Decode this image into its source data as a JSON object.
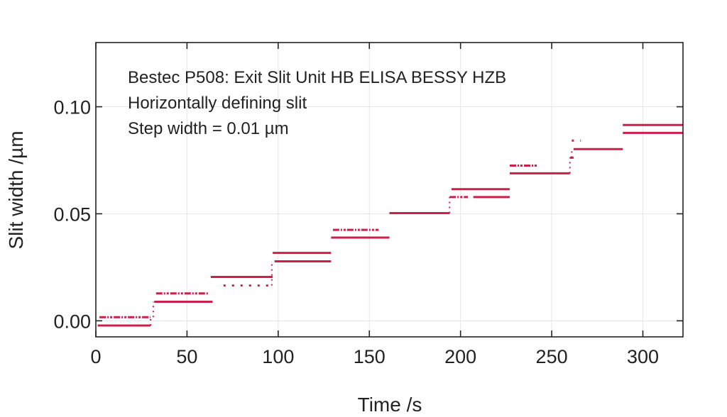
{
  "chart_data": {
    "type": "line",
    "xlabel": "Time /s",
    "ylabel": "Slit width /µm",
    "xlim": [
      0,
      322
    ],
    "ylim": [
      -0.0075,
      0.13
    ],
    "x_ticks": [
      0,
      50,
      100,
      150,
      200,
      250,
      300
    ],
    "x_tick_labels": [
      "0",
      "50",
      "100",
      "150",
      "200",
      "250",
      "300"
    ],
    "y_ticks": [
      0.0,
      0.05,
      0.1
    ],
    "y_tick_labels": [
      "0.00",
      "0.05",
      "0.10"
    ],
    "grid": true,
    "line_color": "#cc1f4a",
    "annotations": [
      "Bestec P508: Exit Slit Unit HB ELISA BESSY HZB",
      "Horizontally defining slit",
      "Step width = 0.01 µm"
    ],
    "series": [
      {
        "segments": [
          {
            "x": [
              2,
              30
            ],
            "y": 0.0017,
            "style": "dash-dot"
          },
          {
            "x": [
              1,
              30
            ],
            "y": -0.0022,
            "style": "solid"
          },
          {
            "x": [
              33,
              62
            ],
            "y": 0.0128,
            "style": "dash-dot"
          },
          {
            "x": [
              32,
              64
            ],
            "y": 0.0089,
            "style": "solid"
          },
          {
            "x": [
              63,
              97
            ],
            "y": 0.0205,
            "style": "solid"
          },
          {
            "x": [
              70,
              96
            ],
            "y": 0.0165,
            "style": "dotted"
          },
          {
            "x": [
              97,
              129
            ],
            "y": 0.0317,
            "style": "solid"
          },
          {
            "x": [
              98,
              129
            ],
            "y": 0.0278,
            "style": "solid"
          },
          {
            "x": [
              130,
              155
            ],
            "y": 0.0425,
            "style": "dash-dot"
          },
          {
            "x": [
              129,
              161
            ],
            "y": 0.0389,
            "style": "solid"
          },
          {
            "x": [
              161,
              194
            ],
            "y": 0.0503,
            "style": "solid"
          },
          {
            "x": [
              195,
              227
            ],
            "y": 0.0615,
            "style": "solid"
          },
          {
            "x": [
              194,
              204
            ],
            "y": 0.0578,
            "style": "dash-dot"
          },
          {
            "x": [
              207,
              227
            ],
            "y": 0.0578,
            "style": "solid"
          },
          {
            "x": [
              227,
              242
            ],
            "y": 0.0725,
            "style": "dash-dot"
          },
          {
            "x": [
              227,
              260
            ],
            "y": 0.0689,
            "style": "solid"
          },
          {
            "x": [
              261,
              266
            ],
            "y": 0.0842,
            "style": "dotted"
          },
          {
            "x": [
              262,
              289
            ],
            "y": 0.0802,
            "style": "solid"
          },
          {
            "x": [
              260,
              262
            ],
            "y": 0.0762,
            "style": "solid"
          },
          {
            "x": [
              289,
              322
            ],
            "y": 0.0915,
            "style": "solid"
          },
          {
            "x": [
              289,
              322
            ],
            "y": 0.0878,
            "style": "solid"
          }
        ],
        "connectors": [
          {
            "x": 30,
            "y": [
              -0.0022,
              0.0017
            ]
          },
          {
            "x": 31.5,
            "y": [
              0.0017,
              0.0089
            ]
          },
          {
            "x": 96.5,
            "y": [
              0.0165,
              0.0278
            ]
          },
          {
            "x": 194,
            "y": [
              0.0503,
              0.0578
            ]
          },
          {
            "x": 260,
            "y": [
              0.0689,
              0.0762
            ]
          },
          {
            "x": 261,
            "y": [
              0.0762,
              0.0802
            ]
          }
        ]
      }
    ]
  }
}
